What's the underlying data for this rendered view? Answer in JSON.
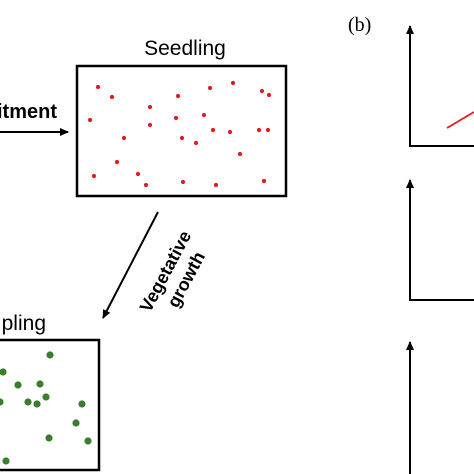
{
  "diagram": {
    "stage_seedling": "Seedling",
    "stage_sapling_partial": "pling",
    "arrow_recruitment_partial": "itment",
    "arrow_vegetative": [
      "Vegetative",
      "growth"
    ],
    "panel_b_label": "(b)"
  },
  "colors": {
    "seedling_dot": "#e41a1c",
    "sapling_dot": "#3a7d2c",
    "line": "#000000",
    "plot_line": "#e41a1c"
  },
  "icons": [
    "right-arrow-icon",
    "down-left-arrow-icon",
    "axis-up-arrow-icon"
  ]
}
